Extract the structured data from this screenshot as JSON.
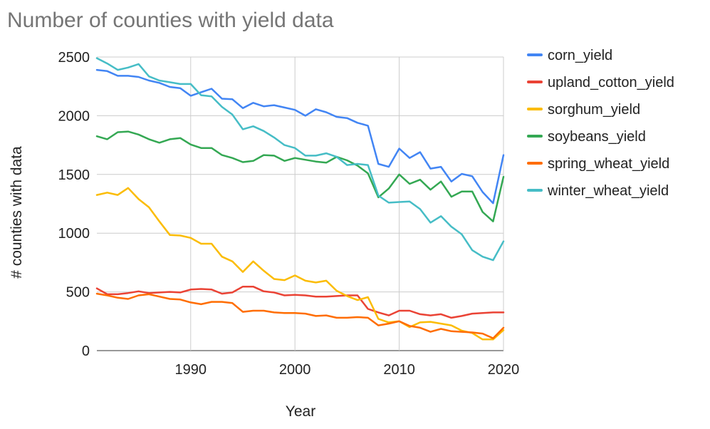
{
  "chart_data": {
    "type": "line",
    "title": "Number of counties with yield data",
    "xlabel": "Year",
    "ylabel": "# counties with data",
    "xlim": [
      1981,
      2020
    ],
    "ylim": [
      0,
      2500
    ],
    "x_ticks": [
      1990,
      2000,
      2010,
      2020
    ],
    "y_ticks": [
      0,
      500,
      1000,
      1500,
      2000,
      2500
    ],
    "x_tick_labels": [
      "1990",
      "2000",
      "2010",
      "2020"
    ],
    "y_tick_labels": [
      "0",
      "500",
      "1000",
      "1500",
      "2000",
      "2500"
    ],
    "grid": true,
    "legend_position": "right",
    "x": [
      1981,
      1982,
      1983,
      1984,
      1985,
      1986,
      1987,
      1988,
      1989,
      1990,
      1991,
      1992,
      1993,
      1994,
      1995,
      1996,
      1997,
      1998,
      1999,
      2000,
      2001,
      2002,
      2003,
      2004,
      2005,
      2006,
      2007,
      2008,
      2009,
      2010,
      2011,
      2012,
      2013,
      2014,
      2015,
      2016,
      2017,
      2018,
      2019,
      2020
    ],
    "series": [
      {
        "name": "corn_yield",
        "color": "#4285f4",
        "values": [
          2390,
          2380,
          2340,
          2340,
          2330,
          2300,
          2280,
          2245,
          2235,
          2170,
          2200,
          2230,
          2145,
          2140,
          2065,
          2110,
          2080,
          2090,
          2070,
          2050,
          2000,
          2055,
          2030,
          1990,
          1980,
          1940,
          1915,
          1590,
          1565,
          1720,
          1640,
          1690,
          1550,
          1565,
          1440,
          1505,
          1485,
          1350,
          1255,
          1665
        ]
      },
      {
        "name": "upland_cotton_yield",
        "color": "#ea4335",
        "values": [
          530,
          480,
          480,
          490,
          505,
          490,
          495,
          500,
          495,
          520,
          525,
          520,
          485,
          495,
          545,
          545,
          505,
          495,
          470,
          475,
          470,
          460,
          460,
          465,
          470,
          470,
          355,
          325,
          300,
          340,
          340,
          310,
          300,
          310,
          280,
          295,
          315,
          320,
          325,
          325
        ]
      },
      {
        "name": "sorghum_yield",
        "color": "#fbbc04",
        "values": [
          1325,
          1345,
          1325,
          1385,
          1290,
          1220,
          1100,
          985,
          980,
          960,
          910,
          910,
          800,
          760,
          670,
          760,
          680,
          610,
          600,
          640,
          595,
          580,
          595,
          510,
          465,
          430,
          455,
          270,
          240,
          250,
          200,
          240,
          245,
          230,
          215,
          170,
          150,
          95,
          95,
          175
        ]
      },
      {
        "name": "soybeans_yield",
        "color": "#34a853",
        "values": [
          1825,
          1800,
          1860,
          1865,
          1840,
          1800,
          1770,
          1800,
          1810,
          1755,
          1725,
          1725,
          1665,
          1640,
          1605,
          1615,
          1665,
          1660,
          1615,
          1640,
          1625,
          1610,
          1600,
          1650,
          1620,
          1575,
          1510,
          1305,
          1380,
          1500,
          1420,
          1455,
          1370,
          1440,
          1310,
          1355,
          1355,
          1180,
          1100,
          1480
        ]
      },
      {
        "name": "spring_wheat_yield",
        "color": "#ff6d01",
        "values": [
          485,
          470,
          450,
          440,
          470,
          480,
          460,
          440,
          435,
          410,
          395,
          415,
          415,
          405,
          330,
          340,
          340,
          325,
          320,
          320,
          315,
          295,
          300,
          280,
          280,
          285,
          280,
          215,
          230,
          250,
          210,
          195,
          160,
          185,
          165,
          160,
          155,
          145,
          105,
          195
        ]
      },
      {
        "name": "winter_wheat_yield",
        "color": "#46bdc6",
        "values": [
          2490,
          2445,
          2390,
          2410,
          2440,
          2335,
          2300,
          2285,
          2270,
          2270,
          2175,
          2165,
          2075,
          2010,
          1885,
          1910,
          1870,
          1815,
          1750,
          1725,
          1660,
          1660,
          1680,
          1650,
          1580,
          1590,
          1580,
          1320,
          1260,
          1265,
          1270,
          1205,
          1090,
          1145,
          1055,
          990,
          855,
          800,
          770,
          930
        ]
      }
    ]
  }
}
